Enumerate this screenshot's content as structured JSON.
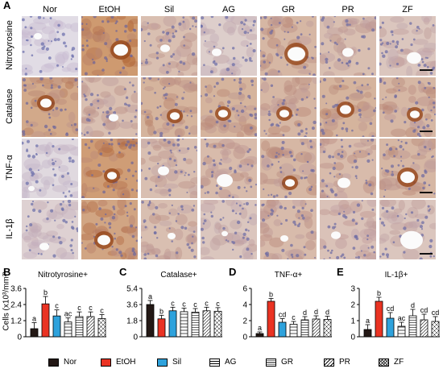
{
  "figure": {
    "panel_a": "A",
    "columns": [
      "Nor",
      "EtOH",
      "Sil",
      "AG",
      "GR",
      "PR",
      "ZF"
    ],
    "rows": [
      "Nitrotyrosine",
      "Catalase",
      "TNF-α",
      "IL-1β"
    ],
    "ylabel": "Cells (x10³/mm²)"
  },
  "colors": {
    "Nor": "#231815",
    "EtOH": "#ea3323",
    "Sil": "#2ea2dc",
    "AG": "#ffffff",
    "GR": "#ffffff",
    "PR": "#ffffff",
    "ZF": "#ffffff"
  },
  "legend": [
    {
      "name": "Nor",
      "fill": "solid",
      "color": "#231815"
    },
    {
      "name": "EtOH",
      "fill": "solid",
      "color": "#ea3323"
    },
    {
      "name": "Sil",
      "fill": "solid",
      "color": "#2ea2dc"
    },
    {
      "name": "AG",
      "fill": "hlines"
    },
    {
      "name": "GR",
      "fill": "hlines-dense"
    },
    {
      "name": "PR",
      "fill": "diag"
    },
    {
      "name": "ZF",
      "fill": "cross"
    }
  ],
  "chart_data": [
    {
      "type": "bar",
      "letter": "B",
      "title": "Nitrotyrosine+",
      "categories": [
        "Nor",
        "EtOH",
        "Sil",
        "AG",
        "GR",
        "PR",
        "ZF"
      ],
      "values": [
        0.6,
        2.45,
        1.55,
        1.1,
        1.5,
        1.5,
        1.35
      ],
      "errors": [
        0.45,
        0.55,
        0.45,
        0.3,
        0.35,
        0.35,
        0.3
      ],
      "letters": [
        "a",
        "b",
        "c",
        "ac",
        "c",
        "c",
        "c"
      ],
      "ylim": [
        0,
        3.6
      ],
      "yticks": [
        "0",
        "1.2",
        "2.4",
        "3.6"
      ],
      "ytick_values": [
        0,
        1.2,
        2.4,
        3.6
      ]
    },
    {
      "type": "bar",
      "letter": "C",
      "title": "Catalase+",
      "categories": [
        "Nor",
        "EtOH",
        "Sil",
        "AG",
        "GR",
        "PR",
        "ZF"
      ],
      "values": [
        3.6,
        2.0,
        2.9,
        2.8,
        2.75,
        2.9,
        2.85
      ],
      "errors": [
        0.45,
        0.4,
        0.4,
        0.4,
        0.4,
        0.4,
        0.4
      ],
      "letters": [
        "a",
        "b",
        "c",
        "c",
        "c",
        "c",
        "c"
      ],
      "ylim": [
        0,
        5.4
      ],
      "yticks": [
        "0",
        "1.8",
        "3.6",
        "5.4"
      ],
      "ytick_values": [
        0,
        1.8,
        3.6,
        5.4
      ]
    },
    {
      "type": "bar",
      "letter": "D",
      "title": "TNF-α+",
      "categories": [
        "Nor",
        "EtOH",
        "Sil",
        "AG",
        "GR",
        "PR",
        "ZF"
      ],
      "values": [
        0.4,
        4.4,
        1.8,
        1.55,
        2.1,
        2.2,
        2.15
      ],
      "errors": [
        0.2,
        0.35,
        0.45,
        0.35,
        0.4,
        0.4,
        0.4
      ],
      "letters": [
        "a",
        "b",
        "cd",
        "c",
        "d",
        "d",
        "d"
      ],
      "ylim": [
        0,
        6
      ],
      "yticks": [
        "0",
        "2",
        "4",
        "6"
      ],
      "ytick_values": [
        0,
        2,
        4,
        6
      ]
    },
    {
      "type": "bar",
      "letter": "E",
      "title": "IL-1β+",
      "categories": [
        "Nor",
        "EtOH",
        "Sil",
        "AG",
        "GR",
        "PR",
        "ZF"
      ],
      "values": [
        0.45,
        2.2,
        1.15,
        0.65,
        1.3,
        1.05,
        0.95
      ],
      "errors": [
        0.3,
        0.25,
        0.35,
        0.25,
        0.4,
        0.35,
        0.3
      ],
      "letters": [
        "a",
        "b",
        "cd",
        "ac",
        "d",
        "cd",
        "cd"
      ],
      "ylim": [
        0,
        3
      ],
      "yticks": [
        "0",
        "1",
        "2",
        "3"
      ],
      "ytick_values": [
        0,
        1,
        2,
        3
      ]
    }
  ]
}
